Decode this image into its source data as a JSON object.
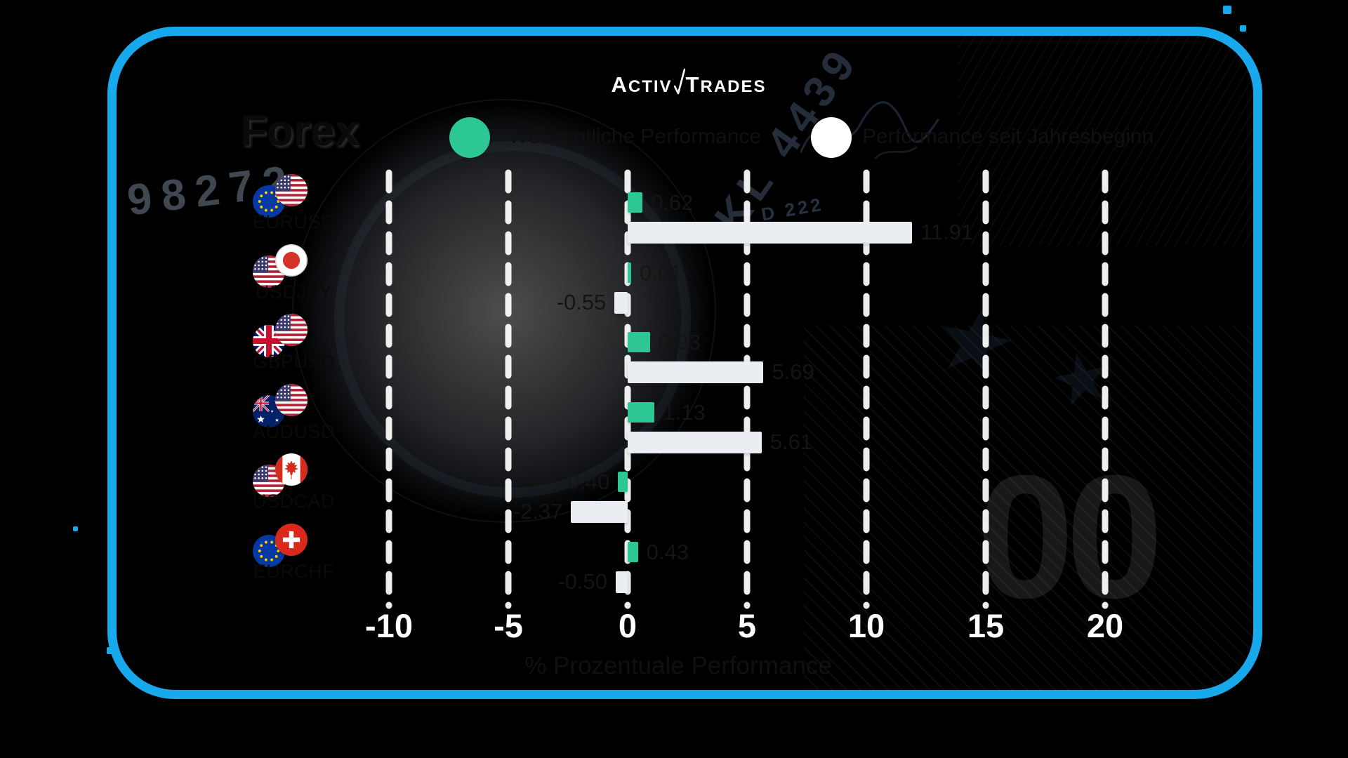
{
  "brand": {
    "name": "ActivTrades",
    "logo_part1": "A",
    "logo_part2": "CTIV",
    "logo_part3": "T",
    "logo_part4": "RADES"
  },
  "title": "Forex",
  "legend": {
    "items": [
      {
        "label": "Wöchentliche Performance",
        "color": "#2dc795"
      },
      {
        "label": "Performance seit Jahresbeginn",
        "color": "#ffffff"
      }
    ]
  },
  "chart_data": {
    "type": "bar",
    "orientation": "horizontal",
    "title": "Forex",
    "categories": [
      "EURUSD",
      "USDJPY",
      "GBPUSD",
      "AUDUSD",
      "USDCAD",
      "EURCHF"
    ],
    "flags": [
      [
        "eu",
        "us"
      ],
      [
        "us",
        "jp"
      ],
      [
        "gb",
        "us"
      ],
      [
        "au",
        "us"
      ],
      [
        "us",
        "ca"
      ],
      [
        "eu",
        "ch"
      ]
    ],
    "series": [
      {
        "name": "Wöchentliche Performance",
        "color": "#2dc795",
        "values": [
          0.62,
          0.01,
          0.93,
          1.13,
          -0.4,
          0.43
        ]
      },
      {
        "name": "Performance seit Jahresbeginn",
        "color": "#eaeef3",
        "values": [
          11.91,
          -0.55,
          5.69,
          5.61,
          -2.37,
          -0.5
        ]
      }
    ],
    "xlabel": "% Prozentuale Performance",
    "xticks": [
      -10,
      -5,
      0,
      5,
      10,
      15,
      20
    ],
    "xlim": [
      -12.5,
      22.5
    ],
    "grid": "dashed-vertical-white",
    "legend_position": "top"
  },
  "background_texture_text": {
    "serial_left": "98272",
    "serial_right": "KL 4439",
    "plate_mark": "D 222",
    "watermark_numeral": "00",
    "star_glyph": "★"
  },
  "theme": {
    "outer_bg": "#000000",
    "card_border": "#18a9ec",
    "bar_green": "#2dc795",
    "bar_white": "#eaeef3",
    "card_bg_from": "#f4f6f8",
    "card_bg_to": "#3c567a"
  }
}
